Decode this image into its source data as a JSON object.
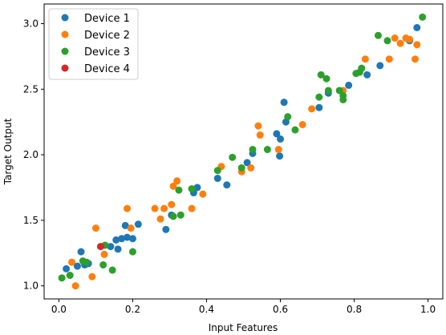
{
  "chart_data": {
    "type": "scatter",
    "title": "",
    "xlabel": "Input Features",
    "ylabel": "Target Output",
    "xlim": [
      -0.04,
      1.04
    ],
    "ylim": [
      0.9,
      3.15
    ],
    "xticks": [
      "0.0",
      "0.2",
      "0.4",
      "0.6",
      "0.8",
      "1.0"
    ],
    "xtick_values": [
      0.0,
      0.2,
      0.4,
      0.6,
      0.8,
      1.0
    ],
    "yticks": [
      "1.0",
      "1.5",
      "2.0",
      "2.5",
      "3.0"
    ],
    "ytick_values": [
      1.0,
      1.5,
      2.0,
      2.5,
      3.0
    ],
    "grid": false,
    "legend_position": "top-left",
    "series": [
      {
        "name": "Device 1",
        "color": "#1f77b4",
        "points": [
          [
            0.02,
            1.13
          ],
          [
            0.05,
            1.15
          ],
          [
            0.06,
            1.26
          ],
          [
            0.07,
            1.16
          ],
          [
            0.08,
            1.17
          ],
          [
            0.14,
            1.3
          ],
          [
            0.155,
            1.35
          ],
          [
            0.16,
            1.28
          ],
          [
            0.17,
            1.36
          ],
          [
            0.18,
            1.46
          ],
          [
            0.185,
            1.37
          ],
          [
            0.2,
            1.36
          ],
          [
            0.215,
            1.47
          ],
          [
            0.29,
            1.43
          ],
          [
            0.305,
            1.54
          ],
          [
            0.365,
            1.71
          ],
          [
            0.375,
            1.75
          ],
          [
            0.43,
            1.82
          ],
          [
            0.455,
            1.77
          ],
          [
            0.51,
            1.94
          ],
          [
            0.525,
            2.01
          ],
          [
            0.59,
            2.16
          ],
          [
            0.6,
            2.12
          ],
          [
            0.598,
            1.99
          ],
          [
            0.61,
            2.4
          ],
          [
            0.615,
            2.25
          ],
          [
            0.705,
            2.36
          ],
          [
            0.73,
            2.47
          ],
          [
            0.785,
            2.53
          ],
          [
            0.835,
            2.61
          ],
          [
            0.87,
            2.68
          ],
          [
            0.95,
            2.87
          ],
          [
            0.97,
            2.97
          ]
        ]
      },
      {
        "name": "Device 2",
        "color": "#ff7f0e",
        "points": [
          [
            0.035,
            1.18
          ],
          [
            0.045,
            1.0
          ],
          [
            0.09,
            1.07
          ],
          [
            0.1,
            1.44
          ],
          [
            0.123,
            1.24
          ],
          [
            0.185,
            1.59
          ],
          [
            0.195,
            1.44
          ],
          [
            0.26,
            1.59
          ],
          [
            0.275,
            1.51
          ],
          [
            0.285,
            1.59
          ],
          [
            0.305,
            1.62
          ],
          [
            0.31,
            1.76
          ],
          [
            0.32,
            1.8
          ],
          [
            0.36,
            1.59
          ],
          [
            0.39,
            1.7
          ],
          [
            0.44,
            1.91
          ],
          [
            0.495,
            1.87
          ],
          [
            0.52,
            1.9
          ],
          [
            0.54,
            2.22
          ],
          [
            0.545,
            2.15
          ],
          [
            0.595,
            2.04
          ],
          [
            0.66,
            2.23
          ],
          [
            0.685,
            2.35
          ],
          [
            0.77,
            2.49
          ],
          [
            0.83,
            2.73
          ],
          [
            0.895,
            2.73
          ],
          [
            0.91,
            2.89
          ],
          [
            0.925,
            2.85
          ],
          [
            0.94,
            2.89
          ],
          [
            0.95,
            2.88
          ],
          [
            0.965,
            2.73
          ],
          [
            0.97,
            2.84
          ]
        ]
      },
      {
        "name": "Device 3",
        "color": "#2ca02c",
        "points": [
          [
            0.008,
            1.06
          ],
          [
            0.03,
            1.08
          ],
          [
            0.065,
            1.19
          ],
          [
            0.075,
            1.18
          ],
          [
            0.12,
            1.16
          ],
          [
            0.125,
            1.31
          ],
          [
            0.145,
            1.12
          ],
          [
            0.2,
            1.26
          ],
          [
            0.31,
            1.53
          ],
          [
            0.325,
            1.73
          ],
          [
            0.33,
            1.54
          ],
          [
            0.36,
            1.74
          ],
          [
            0.43,
            1.88
          ],
          [
            0.47,
            1.98
          ],
          [
            0.495,
            1.9
          ],
          [
            0.525,
            2.04
          ],
          [
            0.565,
            2.04
          ],
          [
            0.62,
            2.29
          ],
          [
            0.64,
            2.19
          ],
          [
            0.705,
            2.44
          ],
          [
            0.71,
            2.61
          ],
          [
            0.725,
            2.58
          ],
          [
            0.73,
            2.49
          ],
          [
            0.76,
            2.49
          ],
          [
            0.77,
            2.45
          ],
          [
            0.77,
            2.42
          ],
          [
            0.805,
            2.62
          ],
          [
            0.815,
            2.63
          ],
          [
            0.82,
            2.66
          ],
          [
            0.865,
            2.91
          ],
          [
            0.89,
            2.87
          ],
          [
            0.985,
            3.05
          ]
        ]
      },
      {
        "name": "Device 4",
        "color": "#d62728",
        "points": [
          [
            0.113,
            1.3
          ]
        ]
      }
    ]
  }
}
